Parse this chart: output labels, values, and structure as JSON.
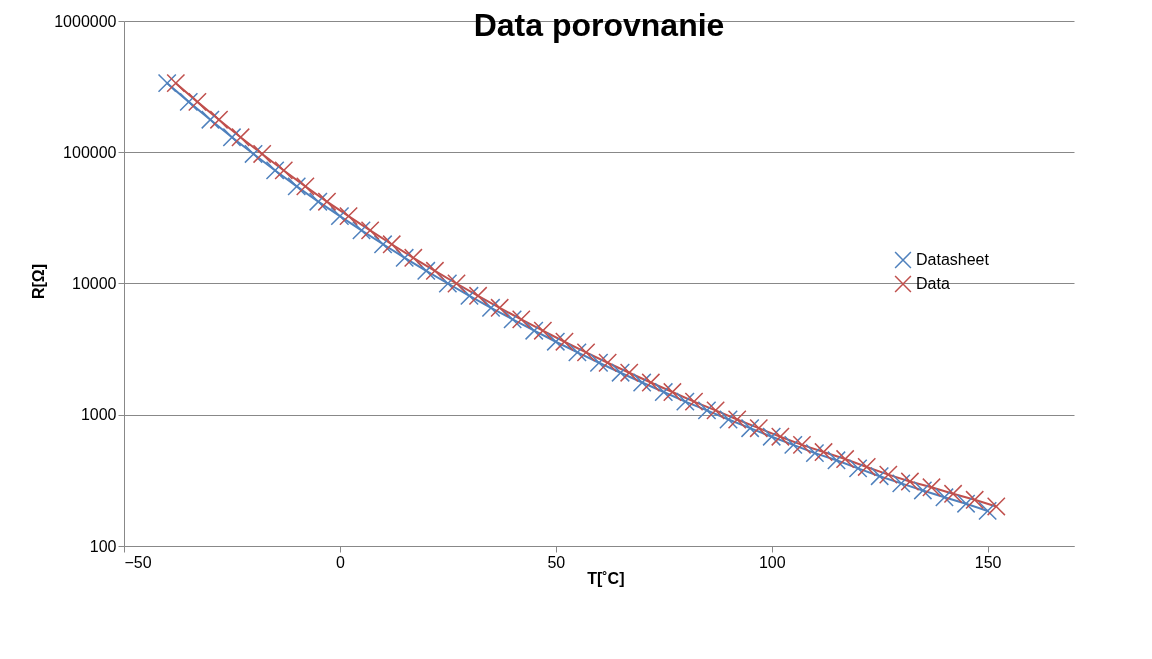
{
  "chart_data": {
    "type": "line",
    "title": "Data porovnanie",
    "xlabel": "T[˚C]",
    "ylabel": "R[Ω]",
    "xlim": [
      -50,
      170
    ],
    "xticks": [
      -50,
      0,
      50,
      100,
      150
    ],
    "ylim": [
      100,
      1000000
    ],
    "yticks": [
      100,
      1000,
      10000,
      100000,
      1000000
    ],
    "log": "y",
    "grid": "y",
    "legend": "right",
    "marker": "cross",
    "line_style": "solid",
    "series": [
      {
        "name": "Datasheet",
        "color": "#4f81bd",
        "x": [
          -40,
          -35,
          -30,
          -25,
          -20,
          -15,
          -10,
          -5,
          0,
          5,
          10,
          15,
          20,
          25,
          30,
          35,
          40,
          45,
          50,
          55,
          60,
          65,
          70,
          75,
          80,
          85,
          90,
          95,
          100,
          105,
          110,
          115,
          120,
          125,
          130,
          135,
          140,
          145,
          150
        ],
        "values": [
          336000,
          242000,
          177000,
          130000,
          97000,
          72700,
          55000,
          42000,
          32600,
          25400,
          19900,
          15700,
          12500,
          10000,
          8060,
          6530,
          5330,
          4370,
          3600,
          2990,
          2490,
          2090,
          1760,
          1490,
          1260,
          1080,
          920,
          790,
          680,
          590,
          510,
          450,
          390,
          340,
          300,
          265,
          235,
          210,
          185
        ]
      },
      {
        "name": "Data",
        "color": "#c0504d",
        "x": [
          -38,
          -33,
          -28,
          -23,
          -18,
          -13,
          -8,
          -3,
          2,
          7,
          12,
          17,
          22,
          27,
          32,
          37,
          42,
          47,
          52,
          57,
          62,
          67,
          72,
          77,
          82,
          87,
          92,
          97,
          102,
          107,
          112,
          117,
          122,
          127,
          132,
          137,
          142,
          147,
          152
        ],
        "values": [
          336000,
          242000,
          177000,
          130000,
          97000,
          72700,
          55000,
          42000,
          32600,
          25400,
          19900,
          15700,
          12500,
          10000,
          8060,
          6530,
          5330,
          4370,
          3600,
          2990,
          2490,
          2090,
          1760,
          1490,
          1260,
          1080,
          920,
          790,
          680,
          590,
          520,
          460,
          400,
          350,
          310,
          280,
          250,
          225,
          200
        ]
      }
    ]
  }
}
